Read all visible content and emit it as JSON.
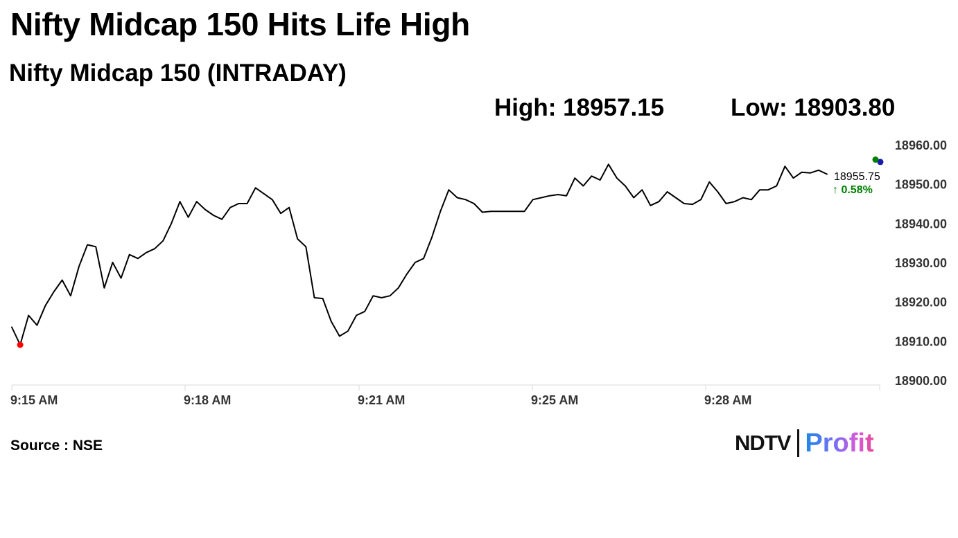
{
  "headline": "Nifty Midcap 150 Hits Life High",
  "chart_data": {
    "type": "line",
    "title": "Nifty Midcap 150 (INTRADAY)",
    "stats": {
      "high": "High: 18957.15",
      "low": "Low: 18903.80"
    },
    "y_ticks": [
      "18960.00",
      "18950.00",
      "18940.00",
      "18930.00",
      "18920.00",
      "18910.00",
      "18900.00"
    ],
    "x_ticks": [
      "9:15 AM",
      "9:18 AM",
      "9:21 AM",
      "9:25 AM",
      "9:28 AM"
    ],
    "ylim": [
      18900,
      18960
    ],
    "grid": false,
    "series": [
      {
        "color": "#000000",
        "values": [
          18913.5,
          18909.0,
          18916.5,
          18914.0,
          18919.0,
          18922.5,
          18925.5,
          18921.5,
          18929.0,
          18934.5,
          18934.0,
          18923.5,
          18930.0,
          18926.0,
          18932.0,
          18931.0,
          18932.5,
          18933.5,
          18935.5,
          18940.0,
          18945.5,
          18941.5,
          18945.5,
          18943.5,
          18942.0,
          18941.0,
          18944.0,
          18945.0,
          18945.0,
          18949.0,
          18947.5,
          18946.0,
          18942.5,
          18944.0,
          18936.0,
          18934.0,
          18921.0,
          18920.8,
          18915.0,
          18911.2,
          18912.5,
          18916.5,
          18917.5,
          18921.5,
          18921.0,
          18921.5,
          18923.5,
          18927.0,
          18930.0,
          18931.0,
          18936.5,
          18943.0,
          18948.5,
          18946.5,
          18946.0,
          18945.0,
          18942.8,
          18943.0,
          18943.0,
          18943.0,
          18943.0,
          18943.0,
          18946.0,
          18946.5,
          18947.0,
          18947.3,
          18947.0,
          18951.5,
          18949.5,
          18952.0,
          18951.0,
          18955.0,
          18951.5,
          18949.5,
          18946.5,
          18948.5,
          18944.5,
          18945.5,
          18948.0,
          18946.5,
          18945.0,
          18944.8,
          18946.0,
          18950.5,
          18948.0,
          18945.0,
          18945.5,
          18946.5,
          18946.0,
          18948.5,
          18948.5,
          18949.5,
          18954.5,
          18951.5,
          18953.0,
          18952.8,
          18953.5,
          18952.5
        ]
      }
    ],
    "last_value": "18955.75",
    "change": "0.58%",
    "change_color": "#008000",
    "low_marker_color": "#ff0000",
    "high_marker_color": "#008000",
    "current_marker_color": "#1a1aa8"
  },
  "source": "Source : NSE",
  "logo": {
    "left": "NDTV",
    "right": "Profit"
  }
}
